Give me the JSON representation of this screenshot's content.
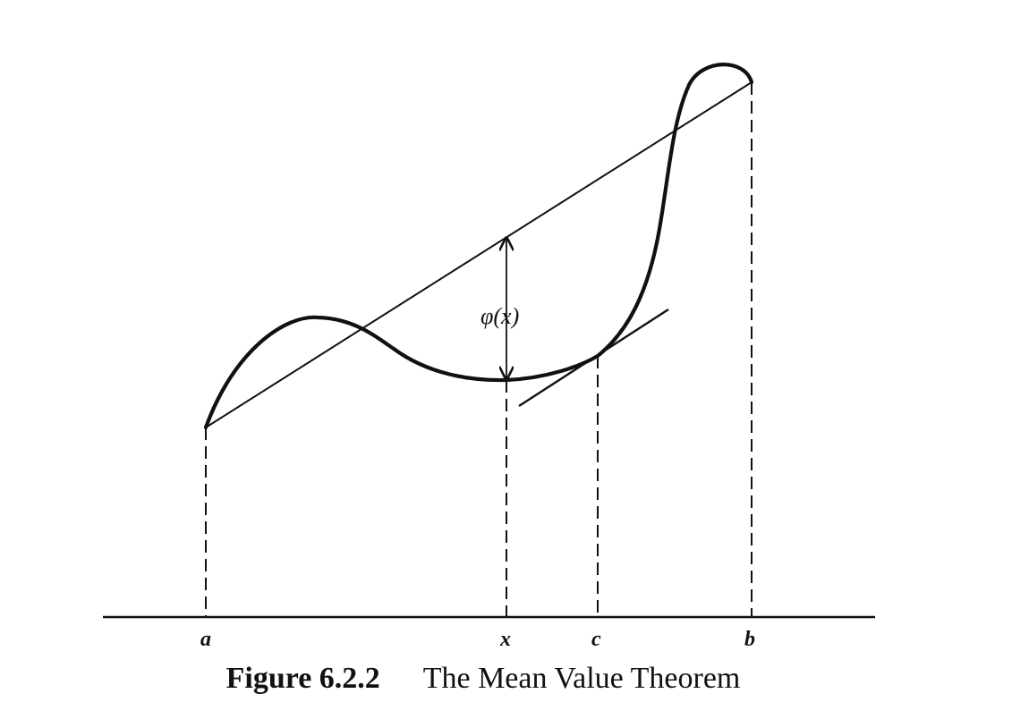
{
  "diagram": {
    "labels": {
      "a": "a",
      "x": "x",
      "c": "c",
      "b": "b",
      "phi": "φ(x)"
    },
    "caption": {
      "number": "Figure 6.2.2",
      "title": "The Mean Value Theorem"
    },
    "colors": {
      "ink": "#111111",
      "background": "#ffffff"
    }
  }
}
